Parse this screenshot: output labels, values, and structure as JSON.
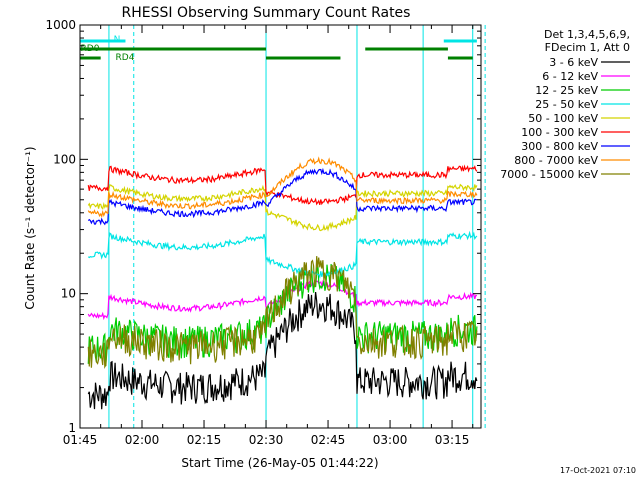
{
  "chart_data": {
    "type": "line",
    "title": "RHESSI Observing Summary Count Rates",
    "xlabel": "Start Time (26-May-05 01:44:22)",
    "ylabel": "Count Rate (s⁻¹ detector⁻¹)",
    "y_scale": "log",
    "ylim": [
      1,
      1000
    ],
    "xlim_minutes": [
      105,
      202
    ],
    "x_ticks": [
      {
        "label": "01:45",
        "minutes": 105
      },
      {
        "label": "02:00",
        "minutes": 120
      },
      {
        "label": "02:15",
        "minutes": 135
      },
      {
        "label": "02:30",
        "minutes": 150
      },
      {
        "label": "02:45",
        "minutes": 165
      },
      {
        "label": "03:00",
        "minutes": 180
      },
      {
        "label": "03:15",
        "minutes": 195
      }
    ],
    "y_ticks": [
      {
        "label": "1",
        "value": 1
      },
      {
        "label": "10",
        "value": 10
      },
      {
        "label": "100",
        "value": 100
      },
      {
        "label": "1000",
        "value": 1000
      }
    ],
    "legend_header": [
      "Det 1,3,4,5,6,9,",
      "FDecim 1, Att 0"
    ],
    "legend_placement": "right",
    "series": [
      {
        "name": "3 - 6 keV",
        "color": "#000000",
        "base": 2.5,
        "peak": 8.5,
        "noisy": true
      },
      {
        "name": "6 - 12 keV",
        "color": "#ff00ff",
        "base": 9.5,
        "peak": 12,
        "noisy": false
      },
      {
        "name": "12 - 25 keV",
        "color": "#00cc00",
        "base": 5.5,
        "peak": 14,
        "noisy": true
      },
      {
        "name": "25 - 50 keV",
        "color": "#00e5e5",
        "base": 27,
        "peak": 14,
        "noisy": false
      },
      {
        "name": "50 - 100 keV",
        "color": "#d4d400",
        "base": 62,
        "peak": 31,
        "noisy": false
      },
      {
        "name": "100 - 300 keV",
        "color": "#ff0000",
        "base": 85,
        "peak": 48,
        "noisy": false
      },
      {
        "name": "300 - 800 keV",
        "color": "#0000ff",
        "base": 48,
        "peak": 82,
        "noisy": false
      },
      {
        "name": "800 - 7000 keV",
        "color": "#ff8c00",
        "base": 55,
        "peak": 98,
        "noisy": false
      },
      {
        "name": "7000 - 15000 keV",
        "color": "#808000",
        "base": 5,
        "peak": 15,
        "noisy": true
      }
    ],
    "flags": [
      {
        "label": "N",
        "color": "#00e5e5",
        "segments_minutes": [
          [
            105,
            116
          ],
          [
            193,
            201
          ]
        ]
      },
      {
        "label": "RD0",
        "color": "#008000",
        "segments_minutes": [
          [
            105,
            150
          ],
          [
            174,
            194
          ]
        ]
      },
      {
        "label": "RD4",
        "color": "#008000",
        "segments_minutes": [
          [
            105,
            110
          ],
          [
            150,
            168
          ],
          [
            194,
            200
          ]
        ]
      }
    ],
    "solid_markers_minutes": [
      112,
      150,
      172,
      188,
      200
    ],
    "dashed_markers_minutes": [
      118,
      203
    ],
    "grid": false
  },
  "footer": {
    "date_stamp": "17-Oct-2021 07:10"
  }
}
